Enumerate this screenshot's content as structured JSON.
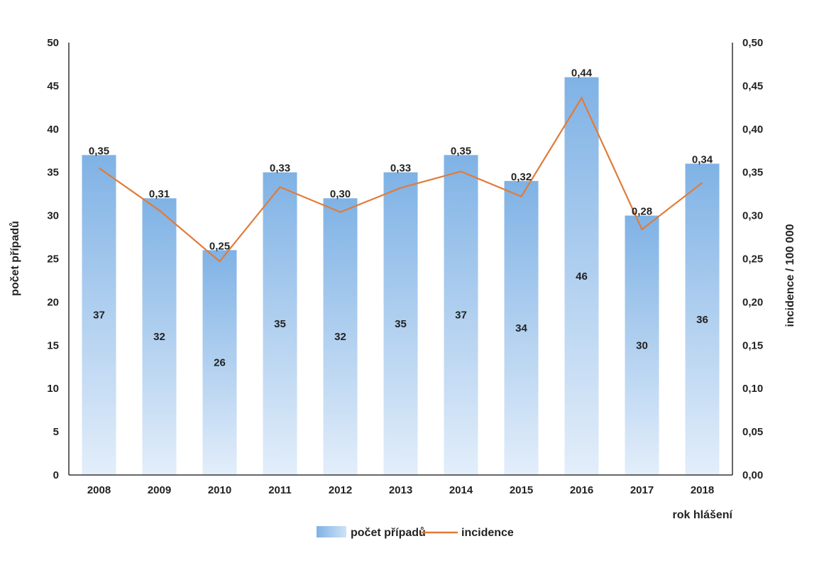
{
  "chart_data": {
    "type": "bar",
    "categories": [
      "2008",
      "2009",
      "2010",
      "2011",
      "2012",
      "2013",
      "2014",
      "2015",
      "2016",
      "2017",
      "2018"
    ],
    "series": [
      {
        "name": "počet případů",
        "type": "bar",
        "axis": "left",
        "values": [
          37,
          32,
          26,
          35,
          32,
          35,
          37,
          34,
          46,
          30,
          36
        ],
        "labels": [
          "37",
          "32",
          "26",
          "35",
          "32",
          "35",
          "37",
          "34",
          "46",
          "30",
          "36"
        ]
      },
      {
        "name": "incidence",
        "type": "line",
        "axis": "right",
        "values": [
          0.355,
          0.306,
          0.247,
          0.333,
          0.304,
          0.332,
          0.351,
          0.322,
          0.436,
          0.284,
          0.338
        ],
        "labels": [
          "0,35",
          "0,31",
          "0,25",
          "0,33",
          "0,30",
          "0,33",
          "0,35",
          "0,32",
          "0,44",
          "0,28",
          "0,34"
        ]
      }
    ],
    "xlabel": "rok hlášení",
    "ylabel": "počet případů",
    "y2label": "incidence / 100 000",
    "ylim": [
      0,
      50
    ],
    "y2lim": [
      0,
      0.5
    ],
    "yticks": [
      "0",
      "5",
      "10",
      "15",
      "20",
      "25",
      "30",
      "35",
      "40",
      "45",
      "50"
    ],
    "y2ticks": [
      "0,00",
      "0,05",
      "0,10",
      "0,15",
      "0,20",
      "0,25",
      "0,30",
      "0,35",
      "0,40",
      "0,45",
      "0,50"
    ],
    "grid": false,
    "legend_position": "bottom",
    "colors": {
      "bar_top": "#7fb2e5",
      "bar_bottom": "#e3eefa",
      "line": "#e07b39",
      "axis": "#333333"
    }
  }
}
